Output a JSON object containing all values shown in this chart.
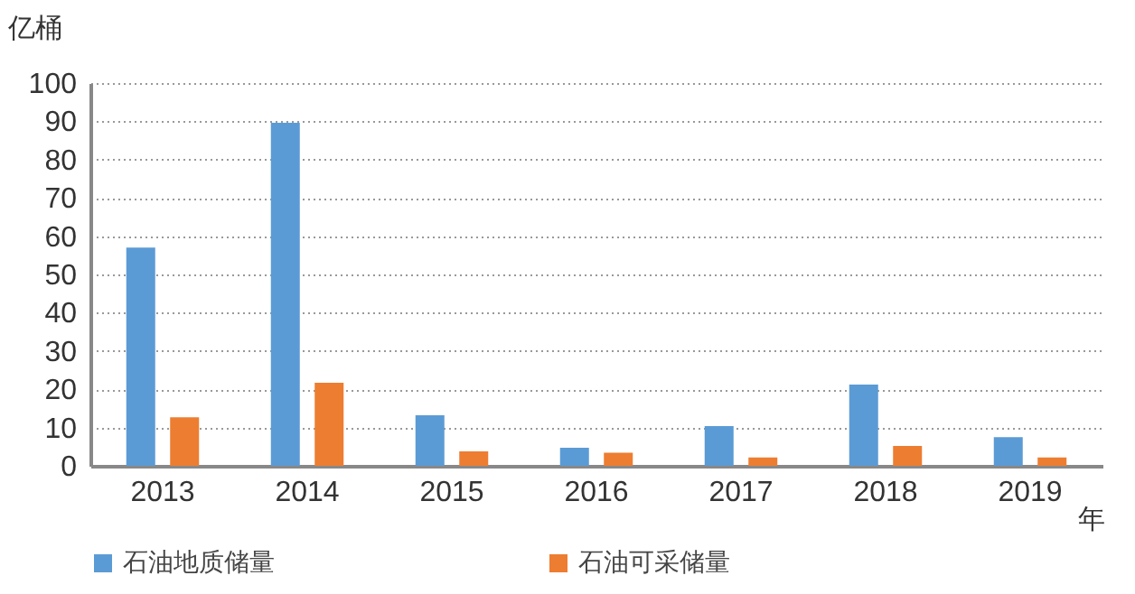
{
  "chart_data": {
    "type": "bar",
    "ylabel": "亿桶",
    "xlabel": "年",
    "categories": [
      "2013",
      "2014",
      "2015",
      "2016",
      "2017",
      "2018",
      "2019"
    ],
    "series": [
      {
        "name": "石油地质储量",
        "color": "#5b9bd5",
        "values": [
          57,
          89.6,
          13.2,
          4.7,
          10.4,
          21.2,
          7.5
        ]
      },
      {
        "name": "石油可采储量",
        "color": "#ed7d31",
        "values": [
          12.7,
          21.7,
          3.8,
          3.4,
          2.2,
          5.2,
          2.2
        ]
      }
    ],
    "ylim": [
      0,
      100
    ],
    "yticks": [
      0,
      10,
      20,
      30,
      40,
      50,
      60,
      70,
      80,
      90,
      100
    ],
    "grid": "y",
    "legend": "bottom"
  }
}
